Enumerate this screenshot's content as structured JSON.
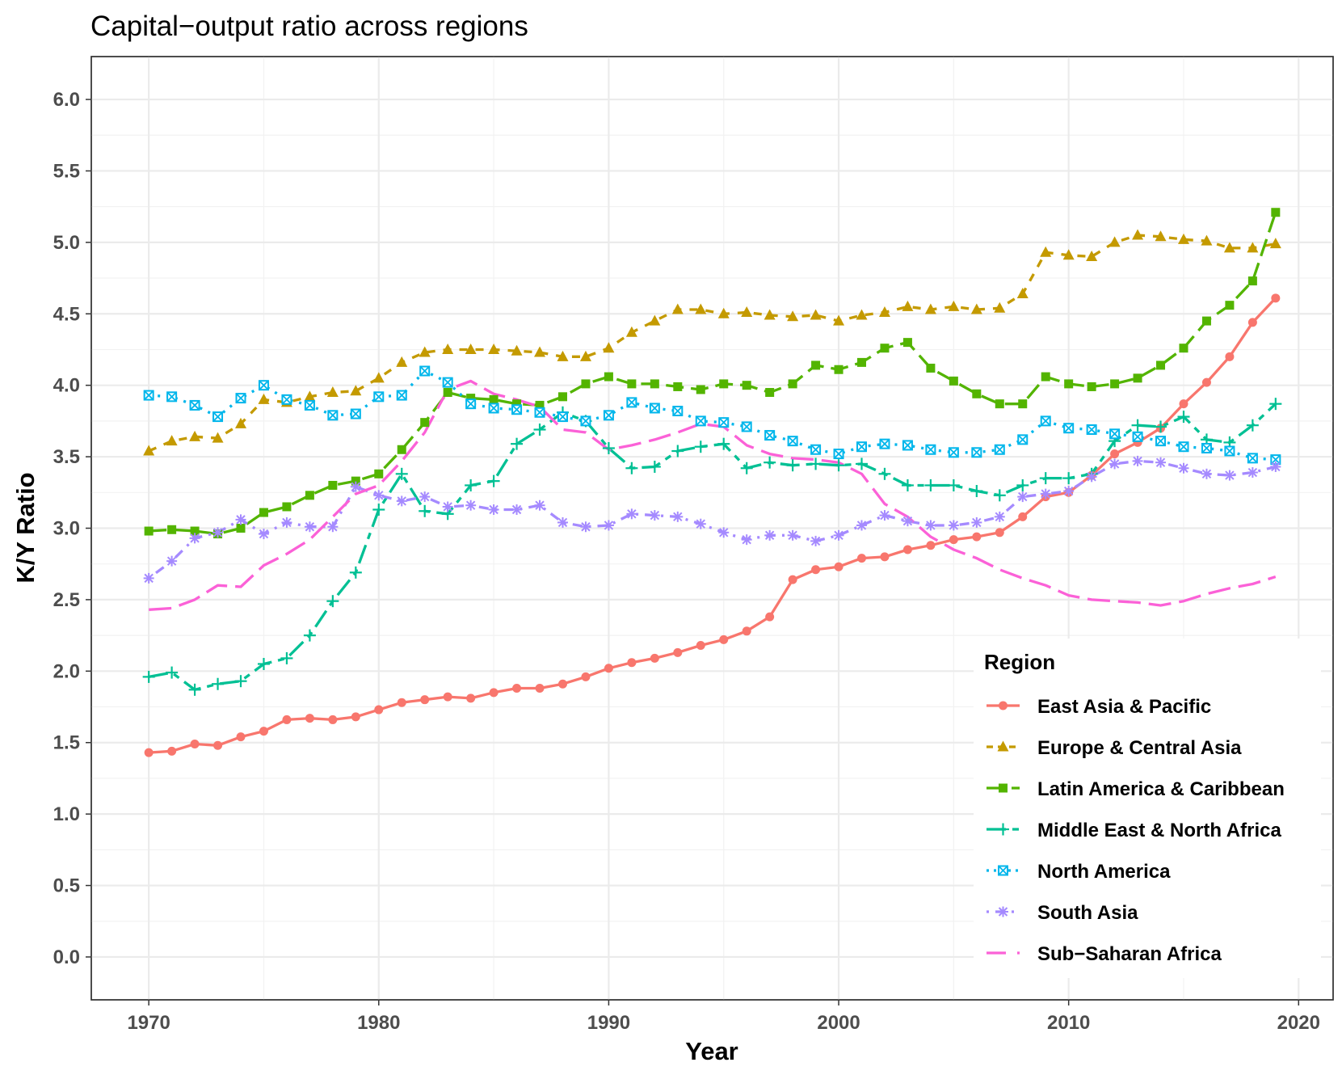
{
  "chart_data": {
    "type": "line",
    "title": "Capital−output ratio across regions",
    "xlabel": "Year",
    "ylabel": "K/Y Ratio",
    "xlim": [
      1967.5,
      2021.5
    ],
    "ylim": [
      -0.3,
      6.3
    ],
    "xticks": [
      1970,
      1980,
      1990,
      2000,
      2010,
      2020
    ],
    "yticks": [
      0.0,
      0.5,
      1.0,
      1.5,
      2.0,
      2.5,
      3.0,
      3.5,
      4.0,
      4.5,
      5.0,
      5.5,
      6.0
    ],
    "xtick_labels": [
      "1970",
      "1980",
      "1990",
      "2000",
      "2010",
      "2020"
    ],
    "ytick_labels": [
      "0.0",
      "0.5",
      "1.0",
      "1.5",
      "2.0",
      "2.5",
      "3.0",
      "3.5",
      "4.0",
      "4.5",
      "5.0",
      "5.5",
      "6.0"
    ],
    "grid": true,
    "legend": {
      "title": "Region",
      "position": "bottom-right"
    },
    "x": [
      1970,
      1971,
      1972,
      1973,
      1974,
      1975,
      1976,
      1977,
      1978,
      1979,
      1980,
      1981,
      1982,
      1983,
      1984,
      1985,
      1986,
      1987,
      1988,
      1989,
      1990,
      1991,
      1992,
      1993,
      1994,
      1995,
      1996,
      1997,
      1998,
      1999,
      2000,
      2001,
      2002,
      2003,
      2004,
      2005,
      2006,
      2007,
      2008,
      2009,
      2010,
      2011,
      2012,
      2013,
      2014,
      2015,
      2016,
      2017,
      2018,
      2019
    ],
    "series": [
      {
        "name": "East Asia & Pacific",
        "color": "#F8766D",
        "marker": "circle",
        "dash": "solid",
        "values": [
          1.43,
          1.44,
          1.49,
          1.48,
          1.54,
          1.58,
          1.66,
          1.67,
          1.66,
          1.68,
          1.73,
          1.78,
          1.8,
          1.82,
          1.81,
          1.85,
          1.88,
          1.88,
          1.91,
          1.96,
          2.02,
          2.06,
          2.09,
          2.13,
          2.18,
          2.22,
          2.28,
          2.38,
          2.64,
          2.71,
          2.73,
          2.79,
          2.8,
          2.85,
          2.88,
          2.92,
          2.94,
          2.97,
          3.08,
          3.22,
          3.25,
          3.37,
          3.52,
          3.6,
          3.7,
          3.87,
          4.02,
          4.2,
          4.44,
          4.61
        ]
      },
      {
        "name": "Europe & Central Asia",
        "color": "#C49A00",
        "marker": "triangle",
        "dash": "dashed",
        "values": [
          3.54,
          3.61,
          3.64,
          3.63,
          3.73,
          3.9,
          3.88,
          3.92,
          3.95,
          3.96,
          4.05,
          4.16,
          4.23,
          4.25,
          4.25,
          4.25,
          4.24,
          4.23,
          4.2,
          4.2,
          4.26,
          4.37,
          4.45,
          4.53,
          4.53,
          4.5,
          4.51,
          4.49,
          4.48,
          4.49,
          4.45,
          4.49,
          4.51,
          4.55,
          4.53,
          4.55,
          4.53,
          4.54,
          4.64,
          4.93,
          4.91,
          4.9,
          5.0,
          5.05,
          5.04,
          5.02,
          5.01,
          4.96,
          4.96,
          4.99
        ]
      },
      {
        "name": "Latin America & Caribbean",
        "color": "#53B400",
        "marker": "square",
        "dash": "longdash",
        "values": [
          2.98,
          2.99,
          2.98,
          2.96,
          3.0,
          3.11,
          3.15,
          3.23,
          3.3,
          3.33,
          3.38,
          3.55,
          3.74,
          3.95,
          3.91,
          3.9,
          3.87,
          3.86,
          3.92,
          4.01,
          4.06,
          4.01,
          4.01,
          3.99,
          3.97,
          4.01,
          4.0,
          3.95,
          4.01,
          4.14,
          4.11,
          4.16,
          4.26,
          4.3,
          4.12,
          4.03,
          3.94,
          3.87,
          3.87,
          4.06,
          4.01,
          3.99,
          4.01,
          4.05,
          4.14,
          4.26,
          4.45,
          4.56,
          4.73,
          5.21
        ]
      },
      {
        "name": "Middle East & North Africa",
        "color": "#00C094",
        "marker": "plus",
        "dash": "twodash",
        "values": [
          1.96,
          1.99,
          1.87,
          1.91,
          1.93,
          2.05,
          2.09,
          2.25,
          2.49,
          2.69,
          3.13,
          3.38,
          3.12,
          3.1,
          3.3,
          3.33,
          3.59,
          3.69,
          3.81,
          3.75,
          3.56,
          3.42,
          3.43,
          3.54,
          3.57,
          3.59,
          3.42,
          3.46,
          3.44,
          3.45,
          3.44,
          3.45,
          3.38,
          3.3,
          3.3,
          3.3,
          3.26,
          3.23,
          3.3,
          3.35,
          3.35,
          3.38,
          3.61,
          3.72,
          3.71,
          3.78,
          3.62,
          3.6,
          3.72,
          3.87
        ]
      },
      {
        "name": "North America",
        "color": "#00B6EB",
        "marker": "boxcross",
        "dash": "dotted",
        "values": [
          3.93,
          3.92,
          3.86,
          3.78,
          3.91,
          4.0,
          3.9,
          3.86,
          3.79,
          3.8,
          3.92,
          3.93,
          4.1,
          4.02,
          3.87,
          3.84,
          3.83,
          3.81,
          3.78,
          3.75,
          3.79,
          3.88,
          3.84,
          3.82,
          3.75,
          3.74,
          3.71,
          3.65,
          3.61,
          3.55,
          3.52,
          3.57,
          3.59,
          3.58,
          3.55,
          3.53,
          3.53,
          3.55,
          3.62,
          3.75,
          3.7,
          3.69,
          3.66,
          3.64,
          3.61,
          3.57,
          3.56,
          3.54,
          3.49,
          3.48
        ]
      },
      {
        "name": "South Asia",
        "color": "#A58AFF",
        "marker": "asterisk",
        "dash": "dotdash",
        "values": [
          2.65,
          2.77,
          2.93,
          2.97,
          3.06,
          2.96,
          3.04,
          3.01,
          3.01,
          3.29,
          3.23,
          3.19,
          3.22,
          3.15,
          3.16,
          3.13,
          3.13,
          3.16,
          3.04,
          3.01,
          3.02,
          3.1,
          3.09,
          3.08,
          3.03,
          2.97,
          2.92,
          2.95,
          2.95,
          2.91,
          2.95,
          3.02,
          3.09,
          3.05,
          3.02,
          3.02,
          3.04,
          3.08,
          3.22,
          3.24,
          3.26,
          3.36,
          3.45,
          3.47,
          3.46,
          3.42,
          3.38,
          3.37,
          3.39,
          3.43
        ]
      },
      {
        "name": "Sub−Saharan Africa",
        "color": "#FB61D7",
        "marker": "none",
        "dash": "longdash-only",
        "values": [
          2.43,
          2.44,
          2.5,
          2.6,
          2.59,
          2.74,
          2.82,
          2.92,
          3.08,
          3.24,
          3.3,
          3.47,
          3.67,
          3.97,
          4.03,
          3.94,
          3.9,
          3.85,
          3.69,
          3.67,
          3.55,
          3.58,
          3.62,
          3.67,
          3.73,
          3.71,
          3.58,
          3.52,
          3.49,
          3.48,
          3.46,
          3.38,
          3.17,
          3.08,
          2.94,
          2.85,
          2.79,
          2.71,
          2.65,
          2.6,
          2.53,
          2.5,
          2.49,
          2.48,
          2.46,
          2.49,
          2.54,
          2.58,
          2.61,
          2.66
        ]
      }
    ]
  }
}
